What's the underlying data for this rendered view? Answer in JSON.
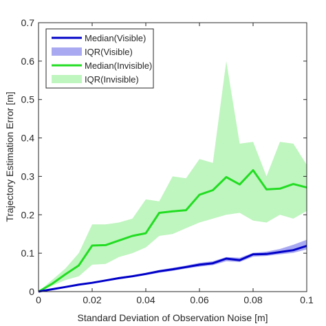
{
  "chart_data": {
    "type": "line",
    "title": "",
    "xlabel": "Standard Deviation of Observation Noise [m]",
    "ylabel": "Trajectory Estimation Error [m]",
    "xlim": [
      0,
      0.1
    ],
    "ylim": [
      0,
      0.7
    ],
    "x_ticks": [
      "0",
      "0.02",
      "0.04",
      "0.06",
      "0.08",
      "0.1"
    ],
    "y_ticks": [
      "0",
      "0.1",
      "0.2",
      "0.3",
      "0.4",
      "0.5",
      "0.6",
      "0.7"
    ],
    "grid": false,
    "legend_position": "top-left",
    "colors": {
      "visible_line": "#0000c8",
      "visible_band": "#a9a9f2",
      "invisible_line": "#22dd22",
      "invisible_band": "#bff5bf"
    },
    "x": [
      0,
      0.005,
      0.01,
      0.015,
      0.02,
      0.025,
      0.03,
      0.035,
      0.04,
      0.045,
      0.05,
      0.055,
      0.06,
      0.065,
      0.07,
      0.075,
      0.08,
      0.085,
      0.09,
      0.095,
      0.1
    ],
    "series": [
      {
        "name": "Median(Visible)",
        "kind": "line",
        "values": [
          0,
          0.006,
          0.012,
          0.018,
          0.023,
          0.029,
          0.035,
          0.04,
          0.046,
          0.053,
          0.058,
          0.064,
          0.07,
          0.074,
          0.086,
          0.082,
          0.097,
          0.098,
          0.103,
          0.108,
          0.119
        ]
      },
      {
        "name": "IQR(Visible)",
        "kind": "band",
        "lower": [
          0,
          0.005,
          0.01,
          0.016,
          0.021,
          0.027,
          0.032,
          0.037,
          0.043,
          0.049,
          0.054,
          0.06,
          0.065,
          0.069,
          0.079,
          0.077,
          0.091,
          0.093,
          0.097,
          0.101,
          0.11
        ],
        "upper": [
          0,
          0.007,
          0.014,
          0.02,
          0.025,
          0.031,
          0.038,
          0.043,
          0.049,
          0.056,
          0.062,
          0.068,
          0.075,
          0.079,
          0.09,
          0.088,
          0.101,
          0.104,
          0.111,
          0.122,
          0.135
        ]
      },
      {
        "name": "Median(Invisible)",
        "kind": "line",
        "values": [
          0,
          0.02,
          0.045,
          0.068,
          0.12,
          0.121,
          0.133,
          0.145,
          0.152,
          0.205,
          0.209,
          0.212,
          0.252,
          0.264,
          0.298,
          0.279,
          0.316,
          0.266,
          0.268,
          0.28,
          0.271
        ]
      },
      {
        "name": "IQR(Invisible)",
        "kind": "band",
        "lower": [
          0,
          0.015,
          0.03,
          0.04,
          0.07,
          0.072,
          0.09,
          0.1,
          0.115,
          0.145,
          0.15,
          0.165,
          0.18,
          0.19,
          0.2,
          0.205,
          0.185,
          0.18,
          0.2,
          0.19,
          0.21
        ],
        "upper": [
          0,
          0.03,
          0.06,
          0.1,
          0.175,
          0.175,
          0.18,
          0.19,
          0.24,
          0.235,
          0.3,
          0.295,
          0.345,
          0.335,
          0.6,
          0.385,
          0.39,
          0.3,
          0.39,
          0.385,
          0.33
        ]
      }
    ]
  }
}
